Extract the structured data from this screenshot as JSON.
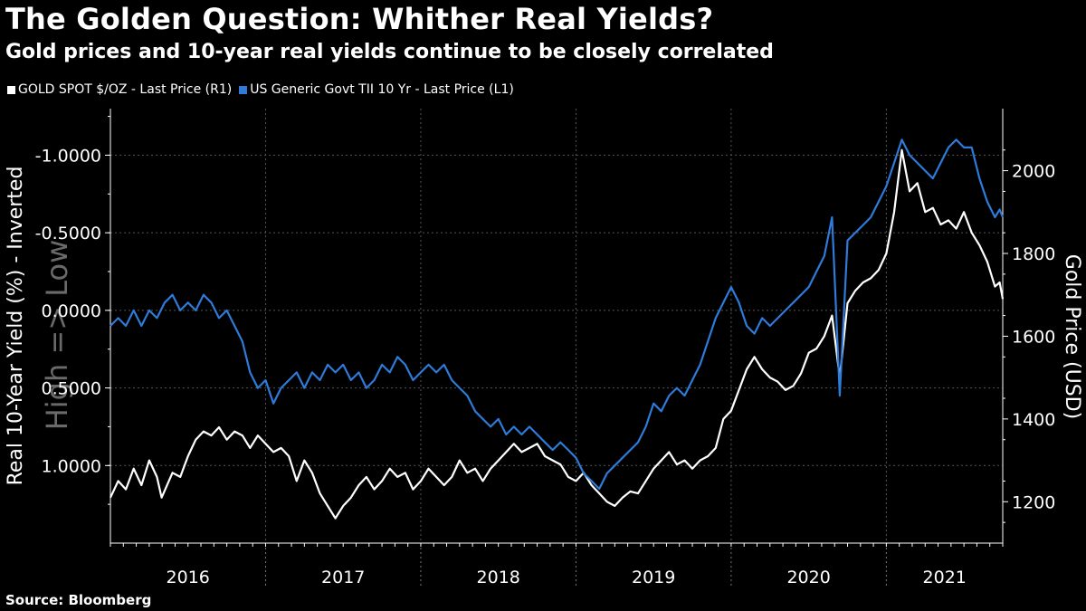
{
  "title": "The Golden Question: Whither Real Yields?",
  "subtitle": "Gold prices and 10-year real yields continue to be closely correlated",
  "source": "Source: Bloomberg",
  "colors": {
    "gold": "#ffffff",
    "yield": "#2e7bd9",
    "background": "#000000",
    "grid": "#555555"
  },
  "chart_data": {
    "type": "line",
    "x_categories": [
      "2016",
      "2017",
      "2018",
      "2019",
      "2020",
      "2021"
    ],
    "left_axis": {
      "label": "Real 10-Year Yield (%) - Inverted",
      "inverted": true,
      "range": [
        1.5,
        -1.3
      ],
      "ticks": [
        -1.0,
        -0.5,
        0.0,
        0.5,
        1.0
      ],
      "tick_labels": [
        "-1.0000",
        "-0.5000",
        "0.0000",
        "0.5000",
        "1.0000"
      ]
    },
    "right_axis": {
      "label": "Gold Price (USD)",
      "range": [
        1100,
        2150
      ],
      "ticks": [
        1200,
        1400,
        1600,
        1800,
        2000
      ],
      "tick_labels": [
        "1200",
        "1400",
        "1600",
        "1800",
        "2000"
      ]
    },
    "watermark": "High => Low",
    "x_range": [
      2015.5,
      2021.25
    ],
    "series": [
      {
        "name": "GOLD SPOT $/OZ - Last Price (R1)",
        "axis": "right",
        "color": "#ffffff",
        "points": [
          [
            2015.5,
            1210
          ],
          [
            2015.55,
            1250
          ],
          [
            2015.6,
            1230
          ],
          [
            2015.65,
            1280
          ],
          [
            2015.7,
            1240
          ],
          [
            2015.75,
            1300
          ],
          [
            2015.8,
            1260
          ],
          [
            2015.83,
            1210
          ],
          [
            2015.9,
            1270
          ],
          [
            2015.95,
            1260
          ],
          [
            2016.0,
            1310
          ],
          [
            2016.05,
            1350
          ],
          [
            2016.1,
            1370
          ],
          [
            2016.15,
            1360
          ],
          [
            2016.2,
            1380
          ],
          [
            2016.25,
            1350
          ],
          [
            2016.3,
            1370
          ],
          [
            2016.35,
            1360
          ],
          [
            2016.4,
            1330
          ],
          [
            2016.45,
            1360
          ],
          [
            2016.5,
            1340
          ],
          [
            2016.55,
            1320
          ],
          [
            2016.6,
            1330
          ],
          [
            2016.65,
            1310
          ],
          [
            2016.7,
            1250
          ],
          [
            2016.75,
            1300
          ],
          [
            2016.8,
            1270
          ],
          [
            2016.85,
            1220
          ],
          [
            2016.9,
            1190
          ],
          [
            2016.95,
            1160
          ],
          [
            2017.0,
            1190
          ],
          [
            2017.05,
            1210
          ],
          [
            2017.1,
            1240
          ],
          [
            2017.15,
            1260
          ],
          [
            2017.2,
            1230
          ],
          [
            2017.25,
            1250
          ],
          [
            2017.3,
            1280
          ],
          [
            2017.35,
            1260
          ],
          [
            2017.4,
            1270
          ],
          [
            2017.45,
            1230
          ],
          [
            2017.5,
            1250
          ],
          [
            2017.55,
            1280
          ],
          [
            2017.6,
            1260
          ],
          [
            2017.65,
            1240
          ],
          [
            2017.7,
            1260
          ],
          [
            2017.75,
            1300
          ],
          [
            2017.8,
            1270
          ],
          [
            2017.85,
            1280
          ],
          [
            2017.9,
            1250
          ],
          [
            2017.95,
            1280
          ],
          [
            2018.0,
            1300
          ],
          [
            2018.05,
            1320
          ],
          [
            2018.1,
            1340
          ],
          [
            2018.15,
            1320
          ],
          [
            2018.2,
            1330
          ],
          [
            2018.25,
            1340
          ],
          [
            2018.3,
            1310
          ],
          [
            2018.35,
            1300
          ],
          [
            2018.4,
            1290
          ],
          [
            2018.45,
            1260
          ],
          [
            2018.5,
            1250
          ],
          [
            2018.55,
            1270
          ],
          [
            2018.6,
            1240
          ],
          [
            2018.65,
            1220
          ],
          [
            2018.7,
            1200
          ],
          [
            2018.75,
            1190
          ],
          [
            2018.8,
            1210
          ],
          [
            2018.85,
            1225
          ],
          [
            2018.9,
            1220
          ],
          [
            2018.95,
            1250
          ],
          [
            2019.0,
            1280
          ],
          [
            2019.05,
            1300
          ],
          [
            2019.1,
            1320
          ],
          [
            2019.15,
            1290
          ],
          [
            2019.2,
            1300
          ],
          [
            2019.25,
            1280
          ],
          [
            2019.3,
            1300
          ],
          [
            2019.35,
            1310
          ],
          [
            2019.4,
            1330
          ],
          [
            2019.45,
            1400
          ],
          [
            2019.5,
            1420
          ],
          [
            2019.55,
            1470
          ],
          [
            2019.6,
            1520
          ],
          [
            2019.65,
            1550
          ],
          [
            2019.7,
            1520
          ],
          [
            2019.75,
            1500
          ],
          [
            2019.8,
            1490
          ],
          [
            2019.85,
            1470
          ],
          [
            2019.9,
            1480
          ],
          [
            2019.95,
            1510
          ],
          [
            2020.0,
            1560
          ],
          [
            2020.05,
            1570
          ],
          [
            2020.1,
            1600
          ],
          [
            2020.15,
            1650
          ],
          [
            2020.2,
            1500
          ],
          [
            2020.25,
            1680
          ],
          [
            2020.3,
            1710
          ],
          [
            2020.35,
            1730
          ],
          [
            2020.4,
            1740
          ],
          [
            2020.45,
            1760
          ],
          [
            2020.5,
            1800
          ],
          [
            2020.55,
            1900
          ],
          [
            2020.6,
            2050
          ],
          [
            2020.65,
            1950
          ],
          [
            2020.7,
            1970
          ],
          [
            2020.75,
            1900
          ],
          [
            2020.8,
            1910
          ],
          [
            2020.85,
            1870
          ],
          [
            2020.9,
            1880
          ],
          [
            2020.95,
            1860
          ],
          [
            2021.0,
            1900
          ],
          [
            2021.05,
            1850
          ],
          [
            2021.1,
            1820
          ],
          [
            2021.15,
            1780
          ],
          [
            2021.2,
            1720
          ],
          [
            2021.23,
            1730
          ],
          [
            2021.25,
            1690
          ]
        ]
      },
      {
        "name": "US Generic Govt TII 10 Yr - Last Price (L1)",
        "axis": "left",
        "color": "#2e7bd9",
        "points": [
          [
            2015.5,
            0.1
          ],
          [
            2015.55,
            0.05
          ],
          [
            2015.6,
            0.1
          ],
          [
            2015.65,
            0.0
          ],
          [
            2015.7,
            0.1
          ],
          [
            2015.75,
            0.0
          ],
          [
            2015.8,
            0.05
          ],
          [
            2015.85,
            -0.05
          ],
          [
            2015.9,
            -0.1
          ],
          [
            2015.95,
            0.0
          ],
          [
            2016.0,
            -0.05
          ],
          [
            2016.05,
            0.0
          ],
          [
            2016.1,
            -0.1
          ],
          [
            2016.15,
            -0.05
          ],
          [
            2016.2,
            0.05
          ],
          [
            2016.25,
            0.0
          ],
          [
            2016.3,
            0.1
          ],
          [
            2016.35,
            0.2
          ],
          [
            2016.4,
            0.4
          ],
          [
            2016.45,
            0.5
          ],
          [
            2016.5,
            0.45
          ],
          [
            2016.55,
            0.6
          ],
          [
            2016.6,
            0.5
          ],
          [
            2016.65,
            0.45
          ],
          [
            2016.7,
            0.4
          ],
          [
            2016.75,
            0.5
          ],
          [
            2016.8,
            0.4
          ],
          [
            2016.85,
            0.45
          ],
          [
            2016.9,
            0.35
          ],
          [
            2016.95,
            0.4
          ],
          [
            2017.0,
            0.35
          ],
          [
            2017.05,
            0.45
          ],
          [
            2017.1,
            0.4
          ],
          [
            2017.15,
            0.5
          ],
          [
            2017.2,
            0.45
          ],
          [
            2017.25,
            0.35
          ],
          [
            2017.3,
            0.4
          ],
          [
            2017.35,
            0.3
          ],
          [
            2017.4,
            0.35
          ],
          [
            2017.45,
            0.45
          ],
          [
            2017.5,
            0.4
          ],
          [
            2017.55,
            0.35
          ],
          [
            2017.6,
            0.4
          ],
          [
            2017.65,
            0.35
          ],
          [
            2017.7,
            0.45
          ],
          [
            2017.75,
            0.5
          ],
          [
            2017.8,
            0.55
          ],
          [
            2017.85,
            0.65
          ],
          [
            2017.9,
            0.7
          ],
          [
            2017.95,
            0.75
          ],
          [
            2018.0,
            0.7
          ],
          [
            2018.05,
            0.8
          ],
          [
            2018.1,
            0.75
          ],
          [
            2018.15,
            0.8
          ],
          [
            2018.2,
            0.75
          ],
          [
            2018.25,
            0.8
          ],
          [
            2018.3,
            0.85
          ],
          [
            2018.35,
            0.9
          ],
          [
            2018.4,
            0.85
          ],
          [
            2018.45,
            0.9
          ],
          [
            2018.5,
            0.95
          ],
          [
            2018.55,
            1.05
          ],
          [
            2018.6,
            1.1
          ],
          [
            2018.65,
            1.15
          ],
          [
            2018.7,
            1.05
          ],
          [
            2018.75,
            1.0
          ],
          [
            2018.8,
            0.95
          ],
          [
            2018.85,
            0.9
          ],
          [
            2018.9,
            0.85
          ],
          [
            2018.95,
            0.75
          ],
          [
            2019.0,
            0.6
          ],
          [
            2019.05,
            0.65
          ],
          [
            2019.1,
            0.55
          ],
          [
            2019.15,
            0.5
          ],
          [
            2019.2,
            0.55
          ],
          [
            2019.25,
            0.45
          ],
          [
            2019.3,
            0.35
          ],
          [
            2019.35,
            0.2
          ],
          [
            2019.4,
            0.05
          ],
          [
            2019.45,
            -0.05
          ],
          [
            2019.5,
            -0.15
          ],
          [
            2019.55,
            -0.05
          ],
          [
            2019.6,
            0.1
          ],
          [
            2019.65,
            0.15
          ],
          [
            2019.7,
            0.05
          ],
          [
            2019.75,
            0.1
          ],
          [
            2019.8,
            0.05
          ],
          [
            2019.85,
            0.0
          ],
          [
            2019.9,
            -0.05
          ],
          [
            2019.95,
            -0.1
          ],
          [
            2020.0,
            -0.15
          ],
          [
            2020.05,
            -0.25
          ],
          [
            2020.1,
            -0.35
          ],
          [
            2020.15,
            -0.6
          ],
          [
            2020.2,
            0.55
          ],
          [
            2020.25,
            -0.45
          ],
          [
            2020.3,
            -0.5
          ],
          [
            2020.35,
            -0.55
          ],
          [
            2020.4,
            -0.6
          ],
          [
            2020.45,
            -0.7
          ],
          [
            2020.5,
            -0.8
          ],
          [
            2020.55,
            -0.95
          ],
          [
            2020.6,
            -1.1
          ],
          [
            2020.65,
            -1.0
          ],
          [
            2020.7,
            -0.95
          ],
          [
            2020.75,
            -0.9
          ],
          [
            2020.8,
            -0.85
          ],
          [
            2020.85,
            -0.95
          ],
          [
            2020.9,
            -1.05
          ],
          [
            2020.95,
            -1.1
          ],
          [
            2021.0,
            -1.05
          ],
          [
            2021.05,
            -1.05
          ],
          [
            2021.1,
            -0.85
          ],
          [
            2021.15,
            -0.7
          ],
          [
            2021.2,
            -0.6
          ],
          [
            2021.23,
            -0.65
          ],
          [
            2021.25,
            -0.6
          ]
        ]
      }
    ]
  }
}
